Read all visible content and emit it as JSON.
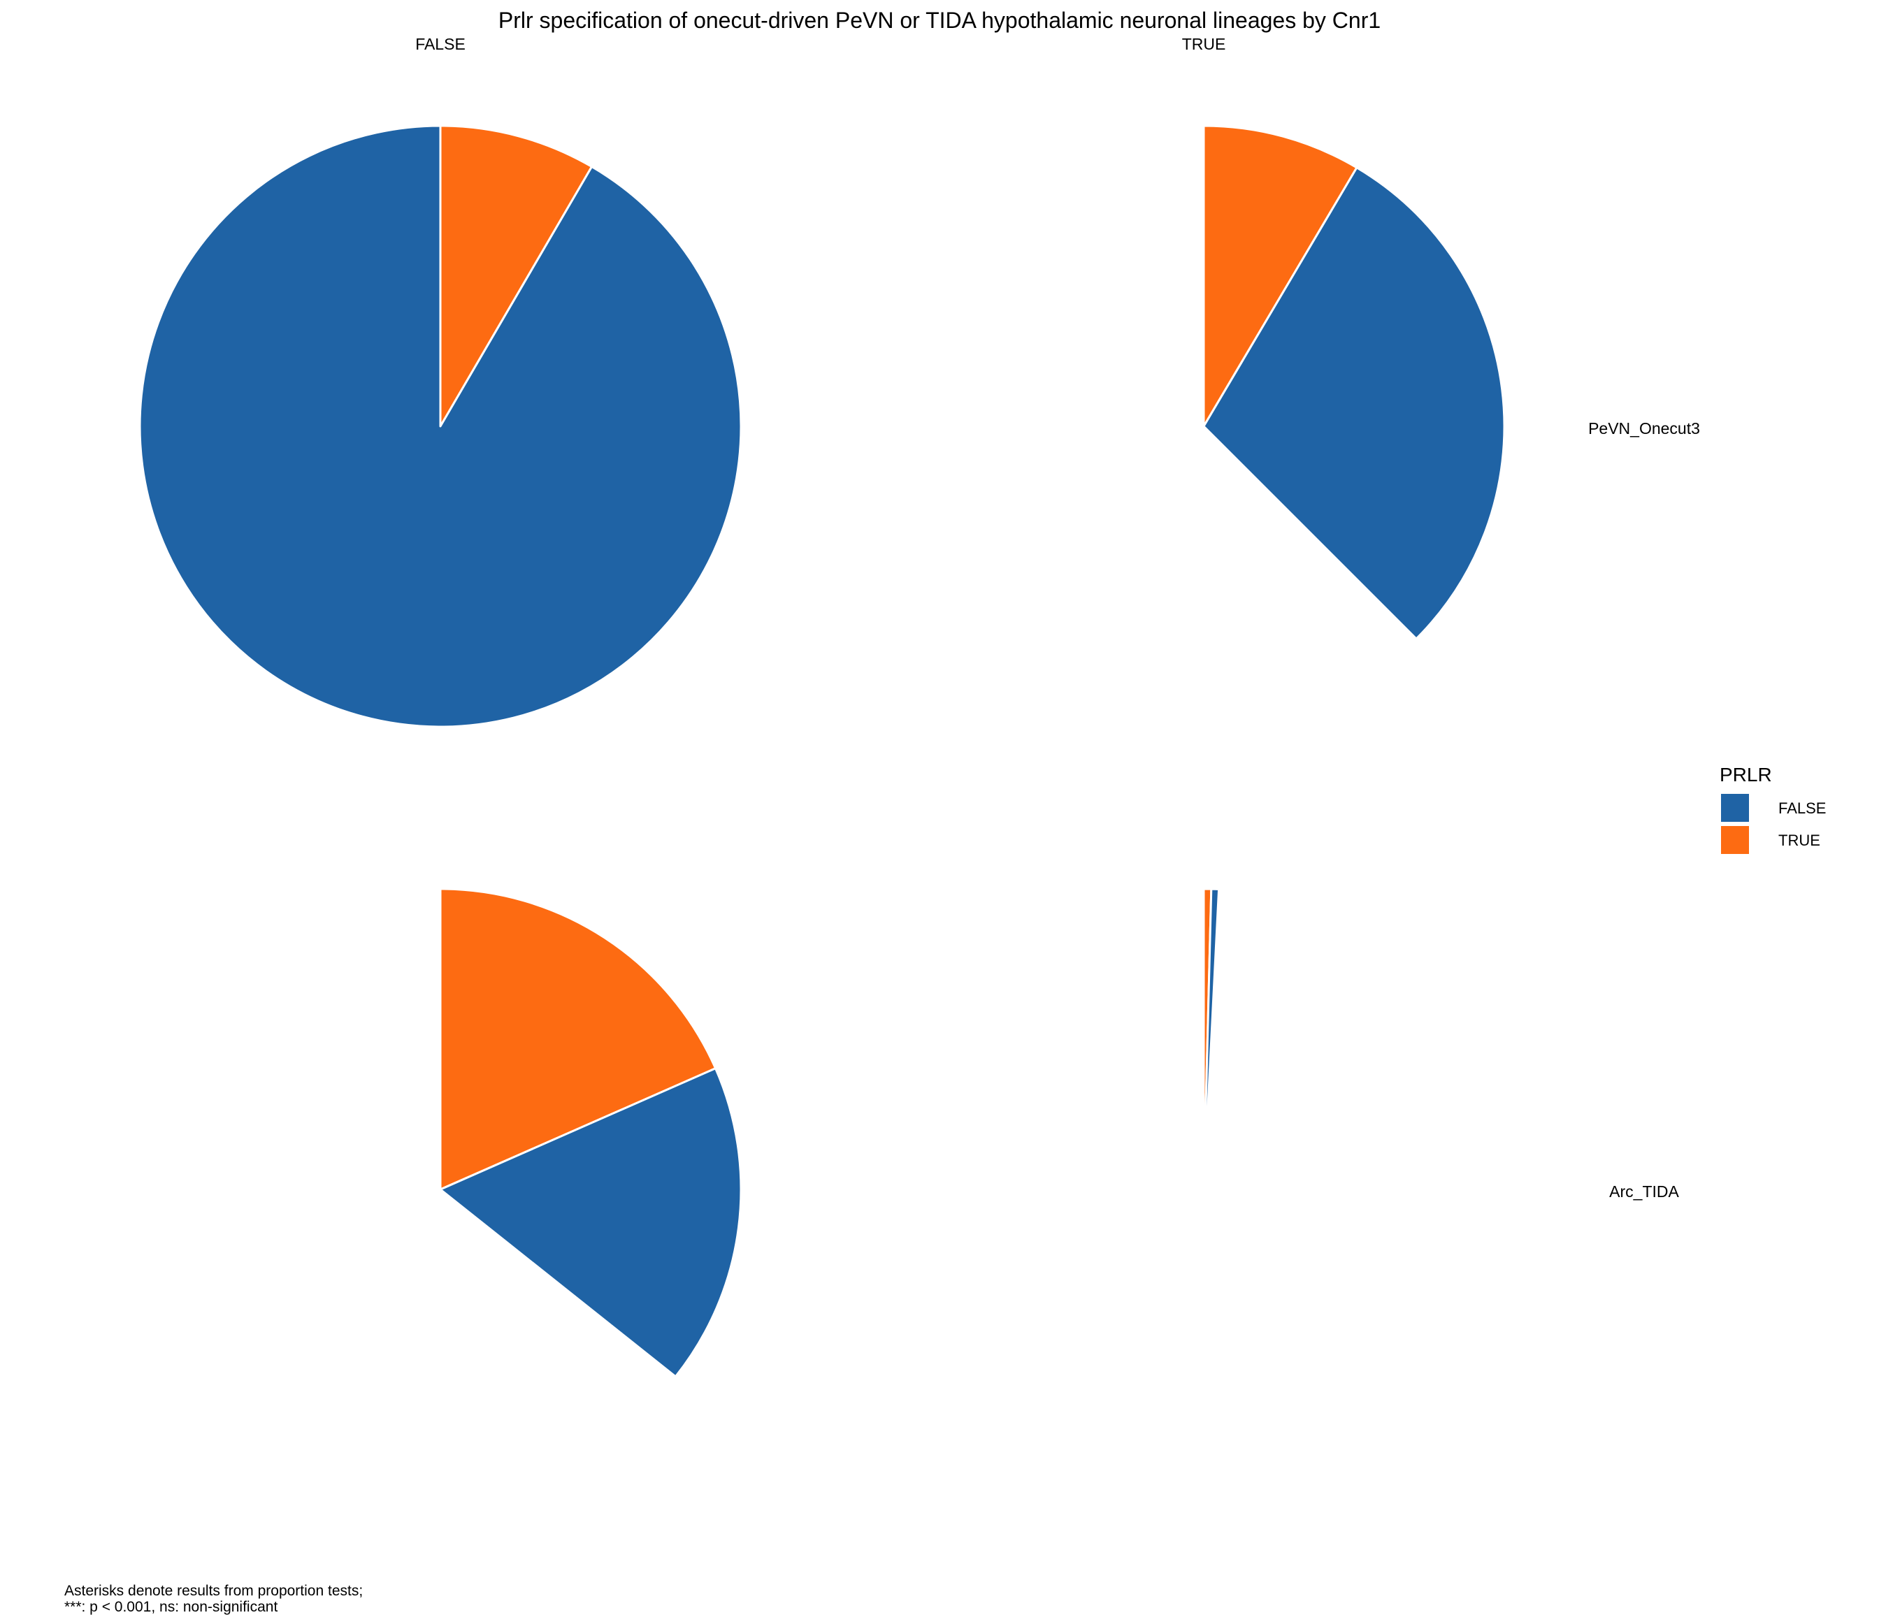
{
  "chart_data": {
    "type": "pie",
    "title": "Prlr specification of onecut-driven PeVN or TIDA hypothalamic neuronal lineages by Cnr1",
    "facet_columns": [
      "FALSE",
      "TRUE"
    ],
    "facet_rows": [
      "PeVN_Onecut3",
      "Arc_TIDA"
    ],
    "legend": {
      "title": "PRLR",
      "position": "right",
      "entries": [
        {
          "label": "FALSE",
          "color": "#1f63a5"
        },
        {
          "label": "TRUE",
          "color": "#fd6b12"
        }
      ]
    },
    "panels": [
      {
        "row": "PeVN_Onecut3",
        "column": "FALSE",
        "slices": [
          {
            "label": "TRUE",
            "fraction": 0.084
          },
          {
            "label": "FALSE",
            "fraction": 0.916
          }
        ]
      },
      {
        "row": "PeVN_Onecut3",
        "column": "TRUE",
        "slices": [
          {
            "label": "TRUE",
            "fraction": 0.085
          },
          {
            "label": "FALSE",
            "fraction": 0.29
          }
        ]
      },
      {
        "row": "Arc_TIDA",
        "column": "FALSE",
        "slices": [
          {
            "label": "TRUE",
            "fraction": 0.184
          },
          {
            "label": "FALSE",
            "fraction": 0.173
          }
        ]
      },
      {
        "row": "Arc_TIDA",
        "column": "TRUE",
        "slices": [
          {
            "label": "TRUE",
            "fraction": 0.004
          },
          {
            "label": "FALSE",
            "fraction": 0.004
          }
        ]
      }
    ],
    "caption": "Asterisks denote results from proportion tests;\n***: p < 0.001, ns: non-significant"
  }
}
